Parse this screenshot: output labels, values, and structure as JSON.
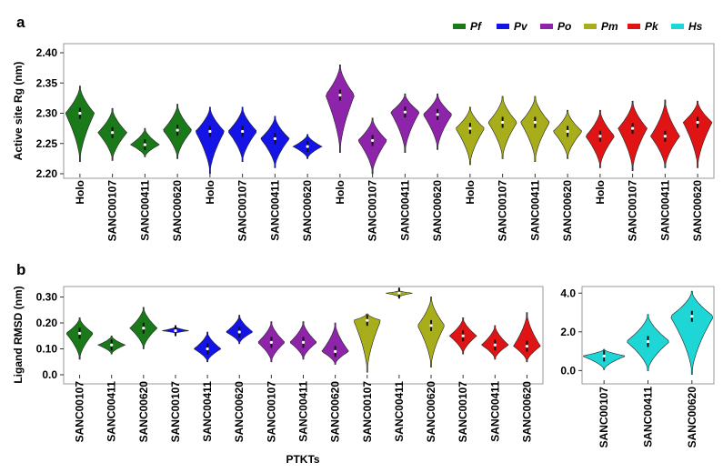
{
  "panel_labels": {
    "a": "a",
    "b": "b"
  },
  "legend": [
    {
      "label": "Pf",
      "color": "#1a7a1a"
    },
    {
      "label": "Pv",
      "color": "#1414e6"
    },
    {
      "label": "Po",
      "color": "#8e24aa"
    },
    {
      "label": "Pm",
      "color": "#a8ad1c"
    },
    {
      "label": "Pk",
      "color": "#e01414"
    },
    {
      "label": "Hs",
      "color": "#1fd6d6"
    }
  ],
  "chart_data": [
    {
      "id": "panel-a",
      "type": "violin",
      "ylabel": "Active site Rg (nm)",
      "ylim": [
        2.2,
        2.4
      ],
      "yticks": [
        "2.20",
        "2.25",
        "2.30",
        "2.35",
        "2.40"
      ],
      "categories": [
        "Holo",
        "SANC00107",
        "SANC00411",
        "SANC00620",
        "Holo",
        "SANC00107",
        "SANC00411",
        "SANC00620",
        "Holo",
        "SANC00107",
        "SANC00411",
        "SANC00620",
        "Holo",
        "SANC00107",
        "SANC00411",
        "SANC00620",
        "Holo",
        "SANC00107",
        "SANC00411",
        "SANC00620"
      ],
      "groups": [
        "Pf",
        "Pf",
        "Pf",
        "Pf",
        "Pv",
        "Pv",
        "Pv",
        "Pv",
        "Po",
        "Po",
        "Po",
        "Po",
        "Pm",
        "Pm",
        "Pm",
        "Pm",
        "Pk",
        "Pk",
        "Pk",
        "Pk"
      ],
      "median": [
        2.3,
        2.268,
        2.248,
        2.272,
        2.27,
        2.27,
        2.258,
        2.245,
        2.33,
        2.255,
        2.302,
        2.298,
        2.275,
        2.285,
        2.285,
        2.27,
        2.262,
        2.275,
        2.262,
        2.285
      ],
      "min": [
        2.22,
        2.222,
        2.228,
        2.225,
        2.2,
        2.22,
        2.21,
        2.225,
        2.235,
        2.2,
        2.235,
        2.24,
        2.215,
        2.225,
        2.22,
        2.225,
        2.21,
        2.205,
        2.21,
        2.21
      ],
      "max": [
        2.345,
        2.308,
        2.275,
        2.315,
        2.31,
        2.31,
        2.295,
        2.265,
        2.38,
        2.292,
        2.332,
        2.332,
        2.31,
        2.328,
        2.328,
        2.305,
        2.305,
        2.32,
        2.322,
        2.32
      ]
    },
    {
      "id": "panel-b-left",
      "type": "violin",
      "ylabel": "Ligand RMSD (nm)",
      "xlabel": "PTKTs",
      "ylim": [
        0,
        0.33
      ],
      "yticks": [
        "0.0",
        "0.10",
        "0.20",
        "0.30"
      ],
      "categories": [
        "SANC00107",
        "SANC00411",
        "SANC00620",
        "SANC00107",
        "SANC00411",
        "SANC00620",
        "SANC00107",
        "SANC00411",
        "SANC00620",
        "SANC00107",
        "SANC00411",
        "SANC00620",
        "SANC00107",
        "SANC00411",
        "SANC00620"
      ],
      "groups": [
        "Pf",
        "Pf",
        "Pf",
        "Pv",
        "Pv",
        "Pv",
        "Po",
        "Po",
        "Po",
        "Pm",
        "Pm",
        "Pm",
        "Pk",
        "Pk",
        "Pk"
      ],
      "median": [
        0.16,
        0.115,
        0.18,
        0.17,
        0.1,
        0.165,
        0.125,
        0.125,
        0.09,
        0.21,
        0.315,
        0.19,
        0.15,
        0.115,
        0.11
      ],
      "min": [
        0.06,
        0.08,
        0.1,
        0.16,
        0.05,
        0.12,
        0.05,
        0.06,
        0.04,
        0.01,
        0.3,
        0.03,
        0.08,
        0.06,
        0.05
      ],
      "max": [
        0.22,
        0.15,
        0.26,
        0.185,
        0.165,
        0.23,
        0.205,
        0.205,
        0.2,
        0.235,
        0.325,
        0.3,
        0.22,
        0.19,
        0.24
      ]
    },
    {
      "id": "panel-b-right",
      "type": "violin",
      "ylim": [
        -0.5,
        4.2
      ],
      "yticks": [
        "0.0",
        "2.0",
        "4.0"
      ],
      "categories": [
        "SANC00107",
        "SANC00411",
        "SANC00620"
      ],
      "groups": [
        "Hs",
        "Hs",
        "Hs"
      ],
      "median": [
        0.75,
        1.5,
        2.8
      ],
      "min": [
        0.05,
        0.0,
        -0.2
      ],
      "max": [
        1.1,
        2.9,
        4.1
      ]
    }
  ]
}
